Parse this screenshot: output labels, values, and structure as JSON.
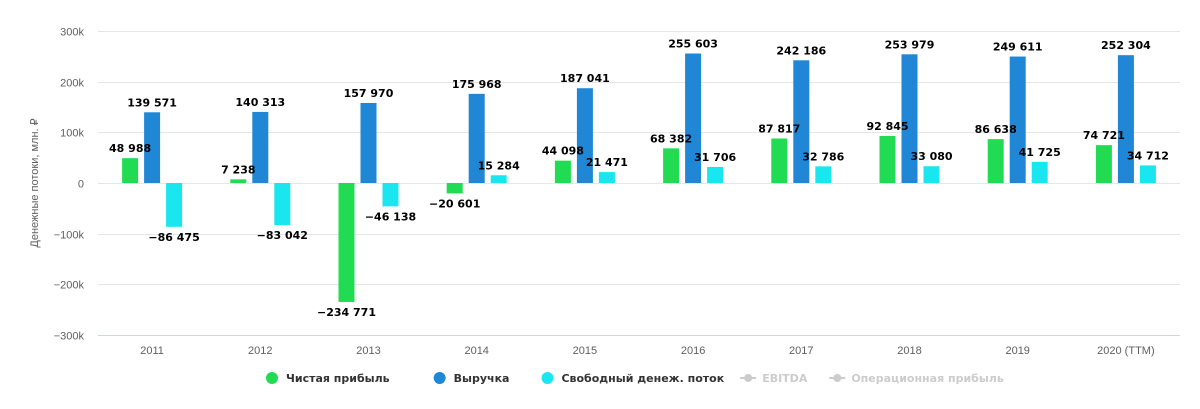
{
  "chart_data": {
    "type": "bar",
    "ylabel": "Денежные потоки, млн. ₽",
    "ylim": [
      -300000,
      300000
    ],
    "y_ticks": [
      -300000,
      -200000,
      -100000,
      0,
      100000,
      200000,
      300000
    ],
    "y_tick_labels": [
      "−300k",
      "−200k",
      "−100k",
      "0",
      "100k",
      "200k",
      "300k"
    ],
    "grid": true,
    "legend_position": "bottom-center",
    "categories": [
      "2011",
      "2012",
      "2013",
      "2014",
      "2015",
      "2016",
      "2017",
      "2018",
      "2019",
      "2020 (TTM)"
    ],
    "series": [
      {
        "name": "Чистая прибыль",
        "color": "#21dc52",
        "values": [
          48988,
          7238,
          -234771,
          -20601,
          44098,
          68382,
          87817,
          92845,
          86638,
          74721
        ],
        "labels": [
          "48 988",
          "7 238",
          "−234 771",
          "−20 601",
          "44 098",
          "68 382",
          "87 817",
          "92 845",
          "86 638",
          "74 721"
        ]
      },
      {
        "name": "Выручка",
        "color": "#1f87d6",
        "values": [
          139571,
          140313,
          157970,
          175968,
          187041,
          255603,
          242186,
          253979,
          249611,
          252304
        ],
        "labels": [
          "139 571",
          "140 313",
          "157 970",
          "175 968",
          "187 041",
          "255 603",
          "242 186",
          "253 979",
          "249 611",
          "252 304"
        ]
      },
      {
        "name": "Свободный денеж. поток",
        "color": "#1ae6f0",
        "values": [
          -86475,
          -83042,
          -46138,
          15284,
          21471,
          31706,
          32786,
          33080,
          41725,
          34712
        ],
        "labels": [
          "−86 475",
          "−83 042",
          "−46 138",
          "15 284",
          "21 471",
          "31 706",
          "32 786",
          "33 080",
          "41 725",
          "34 712"
        ]
      }
    ],
    "hidden_legend_items": [
      {
        "name": "EBITDA",
        "color": "#cccccc"
      },
      {
        "name": "Операционная прибыль",
        "color": "#cccccc"
      }
    ],
    "legend_text_color": "#333333",
    "hidden_text_color": "#cccccc"
  }
}
